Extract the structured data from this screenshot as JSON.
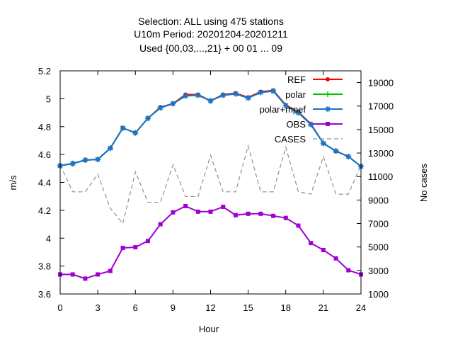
{
  "chart_data": {
    "type": "line",
    "title": [
      "Selection: ALL using   475 stations",
      "U10m   Period: 20201204-20201211",
      "Used {00,03,...,21} + 00 01 ... 09"
    ],
    "xlabel": "Hour",
    "ylabel": "m/s",
    "y2label": "No cases",
    "xlim": [
      0,
      24
    ],
    "ylim": [
      3.6,
      5.2
    ],
    "y2lim": [
      1000,
      20000
    ],
    "xticks": [
      0,
      3,
      6,
      9,
      12,
      15,
      18,
      21,
      24
    ],
    "yticks": [
      "3.6",
      "3.8",
      "4",
      "4.2",
      "4.4",
      "4.6",
      "4.8",
      "5",
      "5.2"
    ],
    "y2ticks": [
      1000,
      3000,
      5000,
      7000,
      9000,
      11000,
      13000,
      15000,
      17000,
      19000
    ],
    "grid": false,
    "legend_position": "top-right",
    "x": [
      0,
      1,
      2,
      3,
      4,
      5,
      6,
      7,
      8,
      9,
      10,
      11,
      12,
      13,
      14,
      15,
      16,
      17,
      18,
      19,
      20,
      21,
      22,
      23,
      24
    ],
    "series": [
      {
        "name": "REF",
        "color": "#ff0000",
        "marker": "circle",
        "axis": "y",
        "values": [
          4.52,
          4.535,
          4.56,
          4.565,
          4.645,
          4.79,
          4.755,
          4.86,
          4.94,
          4.965,
          5.03,
          5.03,
          4.985,
          5.03,
          5.04,
          5.01,
          5.05,
          5.06,
          4.955,
          4.905,
          4.82,
          4.68,
          4.625,
          4.585,
          4.515
        ]
      },
      {
        "name": "polar",
        "color": "#00c000",
        "marker": "cross",
        "axis": "y",
        "values": [
          4.52,
          4.535,
          4.56,
          4.565,
          4.645,
          4.79,
          4.755,
          4.86,
          4.935,
          4.965,
          5.02,
          5.025,
          4.985,
          5.025,
          5.035,
          5.005,
          5.045,
          5.055,
          4.95,
          4.9,
          4.815,
          4.68,
          4.625,
          4.585,
          4.515
        ]
      },
      {
        "name": "polar+mpef",
        "color": "#1874cd",
        "marker": "asterisk",
        "axis": "y",
        "values": [
          4.52,
          4.535,
          4.56,
          4.565,
          4.645,
          4.79,
          4.755,
          4.86,
          4.935,
          4.965,
          5.02,
          5.025,
          4.985,
          5.025,
          5.035,
          5.005,
          5.045,
          5.055,
          4.95,
          4.9,
          4.815,
          4.68,
          4.625,
          4.585,
          4.515
        ]
      },
      {
        "name": "OBS",
        "color": "#a000d0",
        "marker": "square",
        "axis": "y",
        "values": [
          3.74,
          3.74,
          3.71,
          3.74,
          3.765,
          3.93,
          3.935,
          3.98,
          4.1,
          4.185,
          4.23,
          4.19,
          4.19,
          4.225,
          4.165,
          4.175,
          4.175,
          4.16,
          4.145,
          4.09,
          3.965,
          3.915,
          3.855,
          3.77,
          3.74
        ]
      },
      {
        "name": "CASES",
        "color": "#909090",
        "style": "dashed",
        "axis": "y2",
        "values": [
          12000,
          9700,
          9700,
          11200,
          8300,
          7000,
          11400,
          8800,
          8800,
          12000,
          9300,
          9300,
          12800,
          9700,
          9700,
          13600,
          9700,
          9700,
          13500,
          9700,
          9500,
          12700,
          9500,
          9500,
          12000
        ]
      }
    ]
  }
}
